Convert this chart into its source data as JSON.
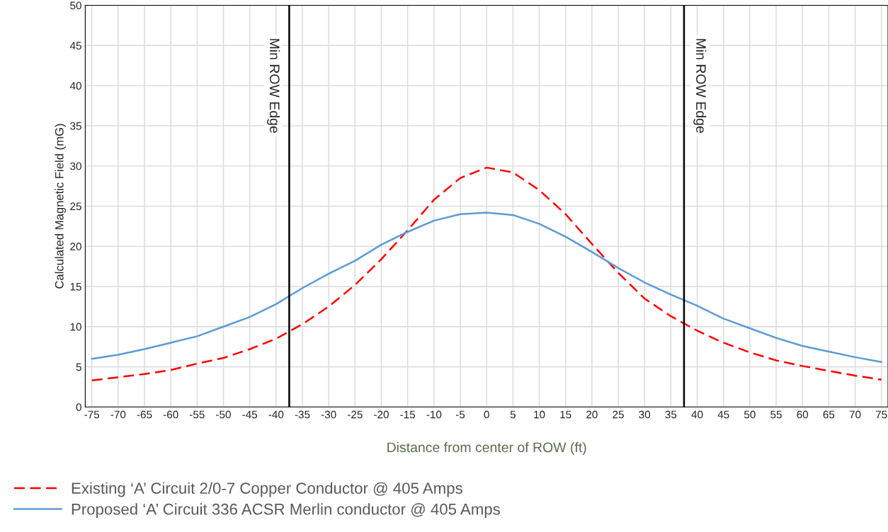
{
  "chart_data": {
    "type": "line",
    "xlabel": "Distance from center of ROW (ft)",
    "ylabel": "Calculated Magnetic Field (mG)",
    "x": [
      -75,
      -70,
      -65,
      -60,
      -55,
      -50,
      -45,
      -40,
      -35,
      -30,
      -25,
      -20,
      -15,
      -10,
      -5,
      0,
      5,
      10,
      15,
      20,
      25,
      30,
      35,
      40,
      45,
      50,
      55,
      60,
      65,
      70,
      75
    ],
    "series": [
      {
        "name": "Existing ‘A’ Circuit 2/0-7 Copper Conductor @ 405 Amps",
        "color": "#ff0000",
        "line_style": "dashed",
        "values": [
          3.3,
          3.7,
          4.1,
          4.6,
          5.4,
          6.1,
          7.2,
          8.5,
          10.3,
          12.5,
          15.2,
          18.4,
          22,
          25.8,
          28.5,
          29.8,
          29.2,
          27,
          24,
          20.3,
          16.7,
          13.5,
          11.3,
          9.5,
          8,
          6.8,
          5.8,
          5.1,
          4.5,
          3.9,
          3.4
        ]
      },
      {
        "name": "Proposed ‘A’ Circuit 336 ACSR Merlin conductor @ 405 Amps",
        "color": "#5b9bd5",
        "line_style": "solid",
        "values": [
          6,
          6.5,
          7.2,
          8,
          8.8,
          10,
          11.2,
          12.8,
          14.8,
          16.6,
          18.2,
          20.2,
          21.8,
          23.2,
          24,
          24.2,
          23.9,
          22.8,
          21.2,
          19.3,
          17.3,
          15.5,
          14,
          12.6,
          11,
          9.8,
          8.6,
          7.6,
          6.9,
          6.2,
          5.6
        ]
      }
    ],
    "xlim": [
      -76.25,
      76.25
    ],
    "xticks": [
      -75,
      -70,
      -65,
      -60,
      -55,
      -50,
      -45,
      -40,
      -35,
      -30,
      -25,
      -20,
      -15,
      -10,
      -5,
      0,
      5,
      10,
      15,
      20,
      25,
      30,
      35,
      40,
      45,
      50,
      55,
      60,
      65,
      70,
      75
    ],
    "ylim": [
      0,
      50
    ],
    "yticks": [
      0,
      5,
      10,
      15,
      20,
      25,
      30,
      35,
      40,
      45,
      50
    ],
    "ref_lines": [
      {
        "axis": "x",
        "value": -37.5,
        "label": "Min ROW Edge",
        "color": "#000000"
      },
      {
        "axis": "x",
        "value": 37.5,
        "label": "Min ROW Edge",
        "color": "#000000"
      }
    ],
    "grid": true,
    "legend": "bottom left",
    "marker": "none"
  }
}
